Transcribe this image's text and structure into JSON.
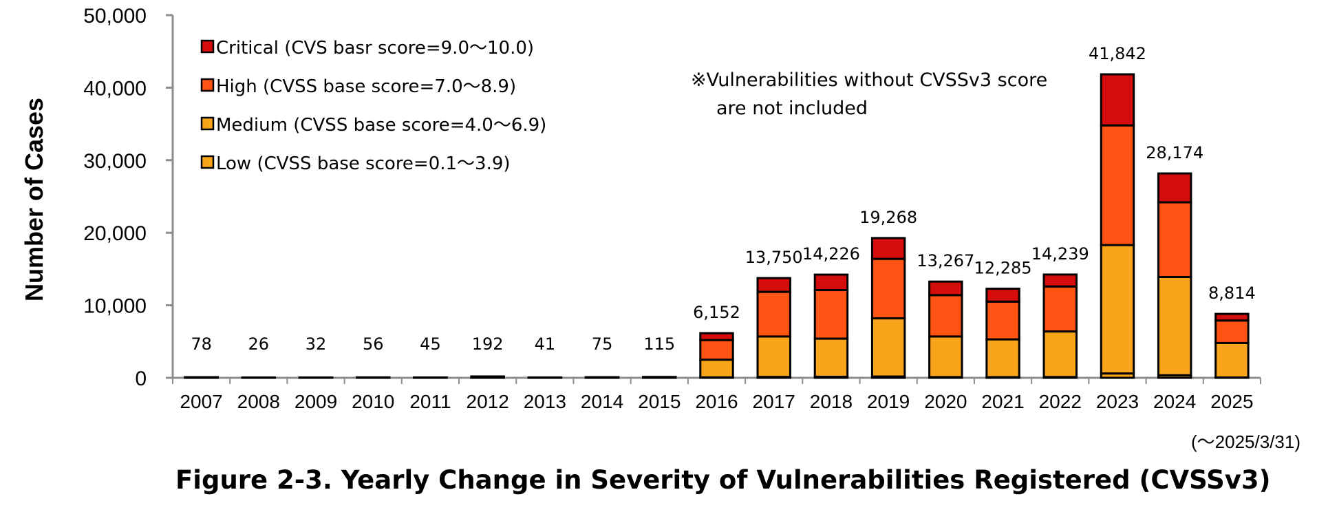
{
  "chart_data": {
    "type": "bar",
    "stacked": true,
    "title": "Figure 2-3. Yearly Change in Severity of Vulnerabilities Registered (CVSSv3)",
    "xlabel": "",
    "ylabel": "Number of Cases",
    "ylim": [
      0,
      50000
    ],
    "yticks": [
      "0",
      "10,000",
      "20,000",
      "30,000",
      "40,000",
      "50,000"
    ],
    "ytick_values": [
      0,
      10000,
      20000,
      30000,
      40000,
      50000
    ],
    "categories": [
      "2007",
      "2008",
      "2009",
      "2010",
      "2011",
      "2012",
      "2013",
      "2014",
      "2015",
      "2016",
      "2017",
      "2018",
      "2019",
      "2020",
      "2021",
      "2022",
      "2023",
      "2024",
      "2025"
    ],
    "series": [
      {
        "name": "Low (CVSS base score=0.1～3.9)",
        "color": "#F9A51B",
        "values": [
          5,
          2,
          3,
          4,
          3,
          12,
          3,
          5,
          8,
          60,
          120,
          140,
          180,
          100,
          90,
          110,
          600,
          350,
          50
        ]
      },
      {
        "name": "Medium (CVSS base score=4.0～6.9)",
        "color": "#F9A51B",
        "values": [
          40,
          14,
          17,
          30,
          24,
          100,
          22,
          40,
          62,
          2440,
          5580,
          5260,
          8020,
          5600,
          5210,
          6280,
          17700,
          13550,
          4750
        ]
      },
      {
        "name": "High (CVSS base score=7.0～8.9)",
        "color": "#FF5314",
        "values": [
          25,
          8,
          9,
          17,
          14,
          60,
          12,
          23,
          35,
          2700,
          6150,
          6700,
          8200,
          5700,
          5200,
          6200,
          16500,
          10300,
          3100
        ]
      },
      {
        "name": "Critical (CVS basr score=9.0～10.0)",
        "color": "#D40C0C",
        "values": [
          8,
          2,
          3,
          5,
          4,
          20,
          4,
          7,
          10,
          952,
          1900,
          2126,
          2868,
          1867,
          1785,
          1649,
          7042,
          3974,
          914
        ]
      }
    ],
    "totals": [
      78,
      26,
      32,
      56,
      45,
      192,
      41,
      75,
      115,
      6152,
      13750,
      14226,
      19268,
      13267,
      12285,
      14239,
      41842,
      28174,
      8814
    ],
    "total_labels": [
      "78",
      "26",
      "32",
      "56",
      "45",
      "192",
      "41",
      "75",
      "115",
      "6,152",
      "13,750",
      "14,226",
      "19,268",
      "13,267",
      "12,285",
      "14,239",
      "41,842",
      "28,174",
      "8,814"
    ],
    "legend": {
      "placement": "top-left",
      "entries": [
        {
          "label": "Critical (CVS basr score=9.0～10.0)",
          "color": "#D40C0C"
        },
        {
          "label": "High (CVSS base score=7.0～8.9)",
          "color": "#FF5314"
        },
        {
          "label": "Medium (CVSS base score=4.0～6.9)",
          "color": "#F9A51B"
        },
        {
          "label": "Low (CVSS base score=0.1～3.9)",
          "color": "#F9A51B"
        }
      ]
    },
    "annotation_lines": [
      "※Vulnerabilities without CVSSv3 score",
      "are not included"
    ],
    "period_note": "(～2025/3/31)",
    "grid": false
  }
}
